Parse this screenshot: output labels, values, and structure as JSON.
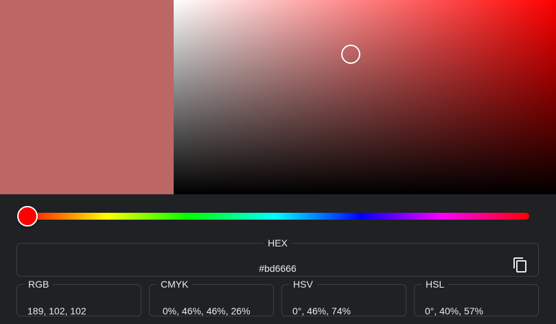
{
  "colors": {
    "selected": "#bd6666",
    "hue": "#ff0000"
  },
  "hue_slider": {
    "value_degrees": 0
  },
  "hex": {
    "label": "HEX",
    "value": "#bd6666",
    "copy_icon": "copy-icon"
  },
  "formats": [
    {
      "label": "RGB",
      "value": "189, 102, 102"
    },
    {
      "label": "CMYK",
      "value": " 0%, 46%, 46%, 26%"
    },
    {
      "label": "HSV",
      "value": "0°, 46%, 74%"
    },
    {
      "label": "HSL",
      "value": "0°, 40%, 57%"
    }
  ]
}
